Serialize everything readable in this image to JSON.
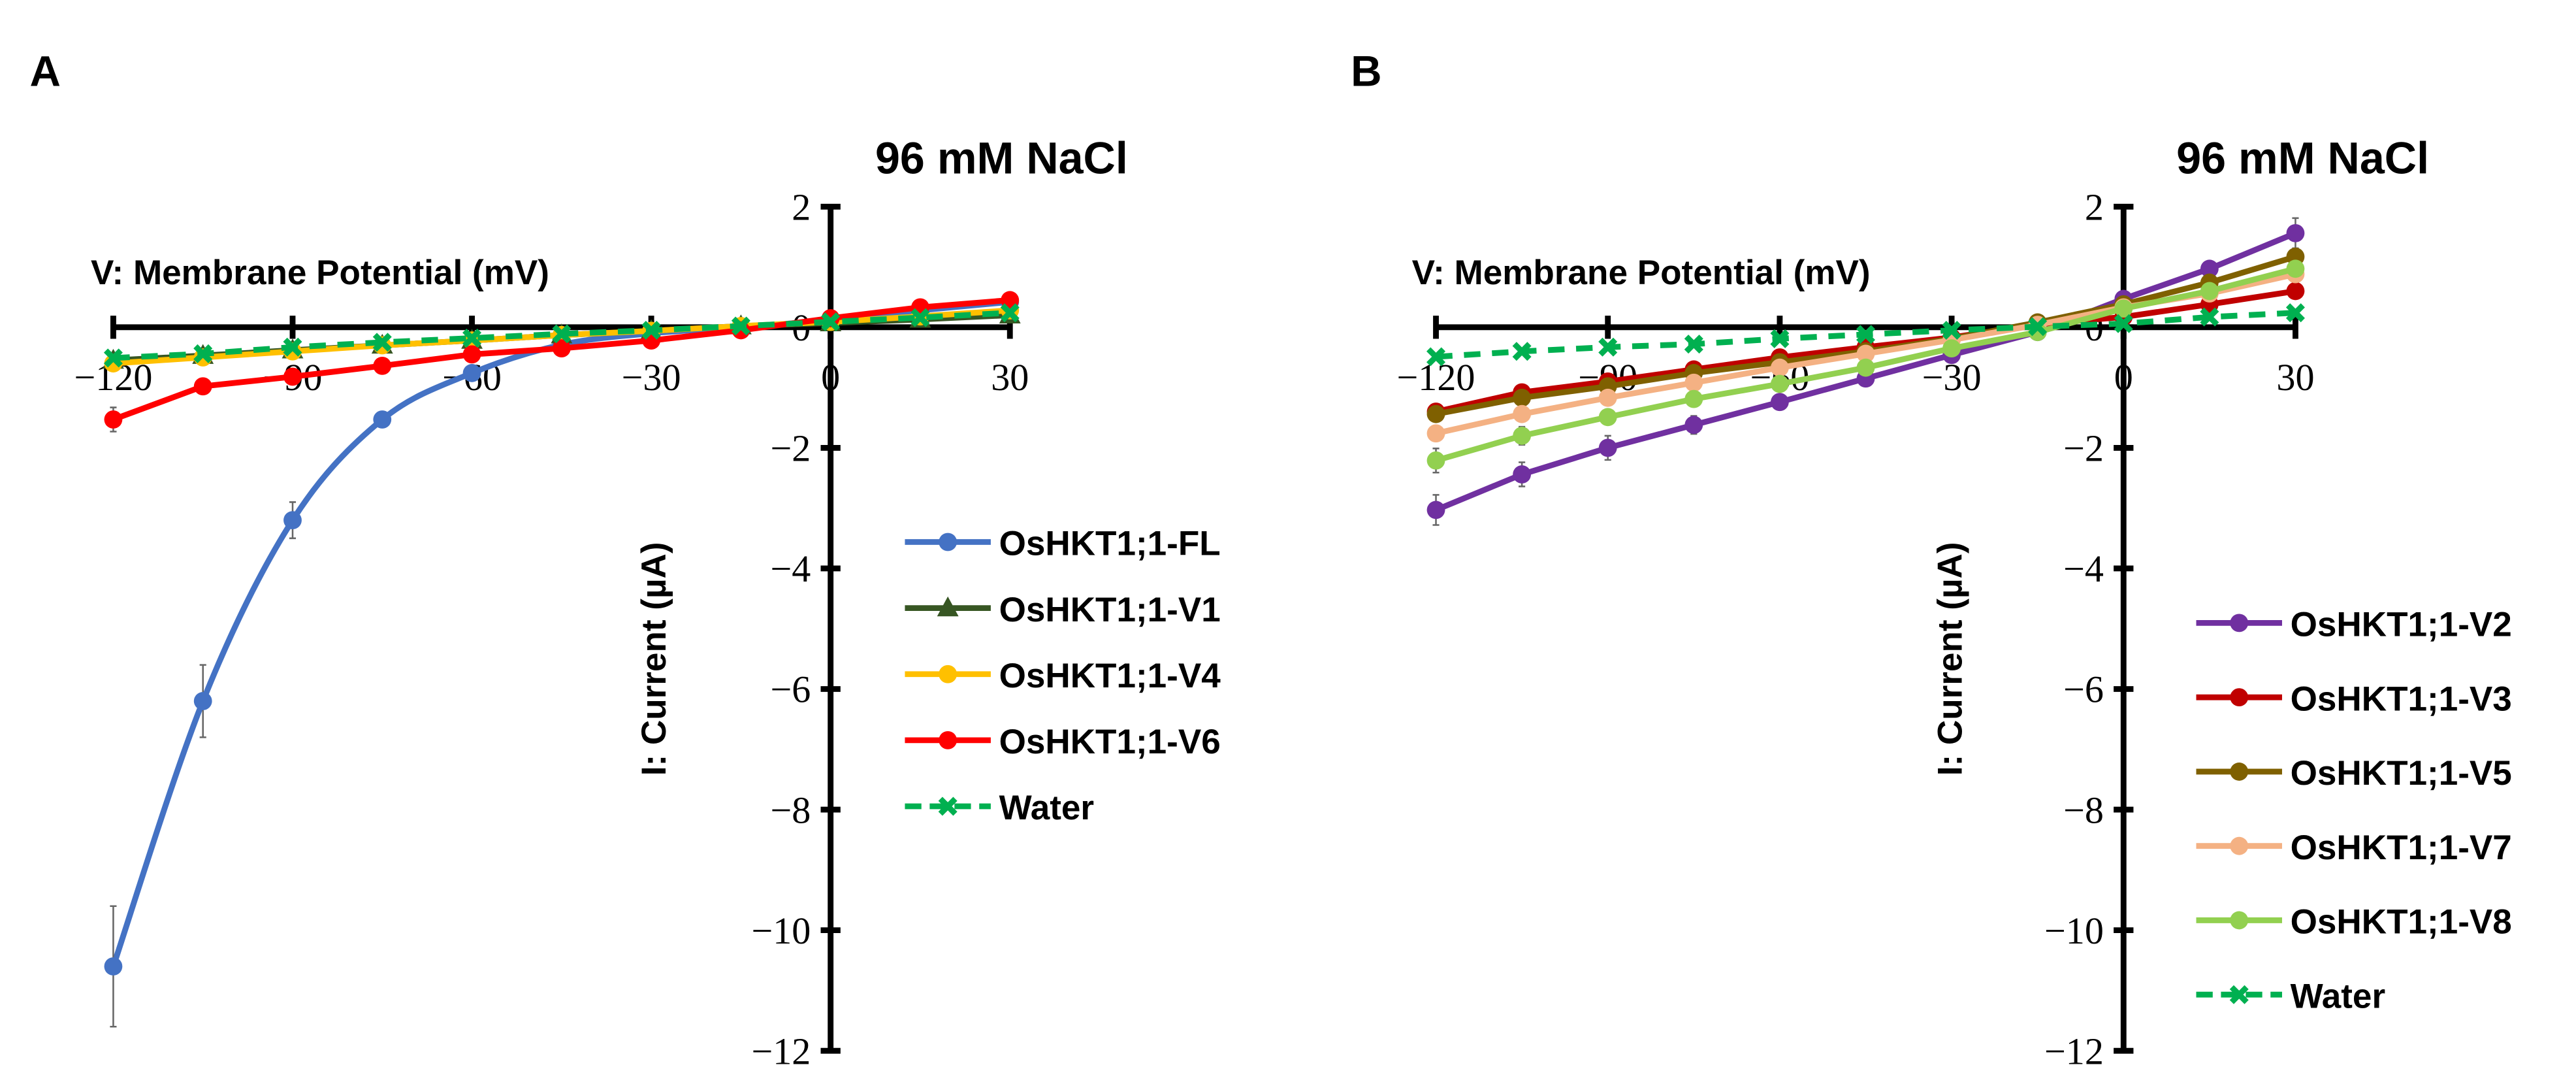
{
  "panels_labels": [
    "A",
    "B"
  ],
  "chart_data": [
    {
      "type": "line",
      "panel": "A",
      "title": "96 mM NaCl",
      "xlabel": "V: Membrane Potential (mV)",
      "ylabel": "I: Current (µA)",
      "xlim": [
        -120,
        30
      ],
      "ylim": [
        -12,
        2
      ],
      "xticks": [
        -120,
        -90,
        -60,
        -30,
        0,
        30
      ],
      "yticks": [
        2,
        0,
        -2,
        -4,
        -6,
        -8,
        -10,
        -12
      ],
      "xtick_labels": [
        "−120",
        "−90",
        "−60",
        "−30",
        "0",
        "30"
      ],
      "ytick_labels": [
        "2",
        "0",
        "−2",
        "−4",
        "−6",
        "−8",
        "−10",
        "−12"
      ],
      "legend_position": "right",
      "x": [
        -120,
        -105,
        -90,
        -75,
        -60,
        -45,
        -30,
        -15,
        0,
        15,
        30
      ],
      "series": [
        {
          "name": "OsHKT1;1-FL",
          "color": "#4472C4",
          "marker": "circle",
          "dash": false,
          "smooth": true,
          "values": [
            -10.6,
            -6.2,
            -3.2,
            -1.53,
            -0.76,
            -0.29,
            -0.1,
            0.0,
            0.12,
            0.28,
            0.42
          ],
          "errors": [
            1.0,
            0.6,
            0.3,
            0.1,
            0,
            0,
            0,
            0,
            0,
            0,
            0
          ]
        },
        {
          "name": "OsHKT1;1-V1",
          "color": "#375623",
          "marker": "triangle",
          "dash": false,
          "values": [
            -0.55,
            -0.47,
            -0.38,
            -0.3,
            -0.22,
            -0.13,
            -0.06,
            0.02,
            0.07,
            0.13,
            0.2
          ]
        },
        {
          "name": "OsHKT1;1-V4",
          "color": "#FFC000",
          "marker": "circle",
          "dash": false,
          "values": [
            -0.6,
            -0.5,
            -0.4,
            -0.3,
            -0.22,
            -0.13,
            -0.06,
            0.02,
            0.09,
            0.18,
            0.28
          ]
        },
        {
          "name": "OsHKT1;1-V6",
          "color": "#FF0000",
          "marker": "circle",
          "dash": false,
          "values": [
            -1.53,
            -0.98,
            -0.82,
            -0.64,
            -0.45,
            -0.35,
            -0.22,
            -0.05,
            0.15,
            0.33,
            0.45
          ],
          "errors": [
            0.2,
            0,
            0,
            0,
            0,
            0,
            0,
            0,
            0,
            0,
            0
          ]
        },
        {
          "name": "Water",
          "color": "#00B050",
          "marker": "x",
          "dash": true,
          "values": [
            -0.51,
            -0.44,
            -0.33,
            -0.25,
            -0.18,
            -0.11,
            -0.05,
            0.02,
            0.09,
            0.16,
            0.24
          ]
        }
      ]
    },
    {
      "type": "line",
      "panel": "B",
      "title": "96 mM NaCl",
      "xlabel": "V: Membrane Potential (mV)",
      "ylabel": "I: Current (µA)",
      "xlim": [
        -120,
        30
      ],
      "ylim": [
        -12,
        2
      ],
      "xticks": [
        -120,
        -90,
        -60,
        -30,
        0,
        30
      ],
      "yticks": [
        2,
        0,
        -2,
        -4,
        -6,
        -8,
        -10,
        -12
      ],
      "xtick_labels": [
        "−120",
        "−90",
        "−60",
        "−30",
        "0",
        "30"
      ],
      "ytick_labels": [
        "2",
        "0",
        "−2",
        "−4",
        "−6",
        "−8",
        "−10",
        "−12"
      ],
      "legend_position": "right",
      "x": [
        -120,
        -105,
        -90,
        -75,
        -60,
        -45,
        -30,
        -15,
        0,
        15,
        30
      ],
      "series": [
        {
          "name": "OsHKT1;1-V2",
          "color": "#7030A0",
          "marker": "circle",
          "dash": false,
          "values": [
            -3.03,
            -2.44,
            -2.0,
            -1.62,
            -1.24,
            -0.85,
            -0.46,
            -0.08,
            0.47,
            0.97,
            1.56
          ],
          "errors": [
            0.25,
            0.2,
            0.2,
            0.15,
            0.1,
            0,
            0,
            0,
            0,
            0.1,
            0.25
          ]
        },
        {
          "name": "OsHKT1;1-V3",
          "color": "#C00000",
          "marker": "circle",
          "dash": false,
          "values": [
            -1.4,
            -1.08,
            -0.9,
            -0.7,
            -0.5,
            -0.33,
            -0.17,
            0.05,
            0.17,
            0.38,
            0.6
          ]
        },
        {
          "name": "OsHKT1;1-V5",
          "color": "#7F6000",
          "marker": "circle",
          "dash": false,
          "values": [
            -1.44,
            -1.17,
            -0.98,
            -0.76,
            -0.58,
            -0.4,
            -0.19,
            0.08,
            0.38,
            0.74,
            1.17
          ]
        },
        {
          "name": "OsHKT1;1-V7",
          "color": "#F4B183",
          "marker": "circle",
          "dash": false,
          "values": [
            -1.76,
            -1.44,
            -1.17,
            -0.92,
            -0.67,
            -0.44,
            -0.21,
            0.04,
            0.33,
            0.56,
            0.88
          ]
        },
        {
          "name": "OsHKT1;1-V8",
          "color": "#92D050",
          "marker": "circle",
          "dash": false,
          "values": [
            -2.21,
            -1.8,
            -1.49,
            -1.19,
            -0.94,
            -0.67,
            -0.35,
            -0.08,
            0.31,
            0.6,
            0.97
          ],
          "errors": [
            0.2,
            0.15,
            0.1,
            0.1,
            0,
            0,
            0,
            0,
            0,
            0,
            0
          ]
        },
        {
          "name": "Water",
          "color": "#00B050",
          "marker": "x",
          "dash": true,
          "values": [
            -0.49,
            -0.4,
            -0.33,
            -0.28,
            -0.19,
            -0.12,
            -0.05,
            0.01,
            0.06,
            0.17,
            0.24
          ]
        }
      ]
    }
  ]
}
